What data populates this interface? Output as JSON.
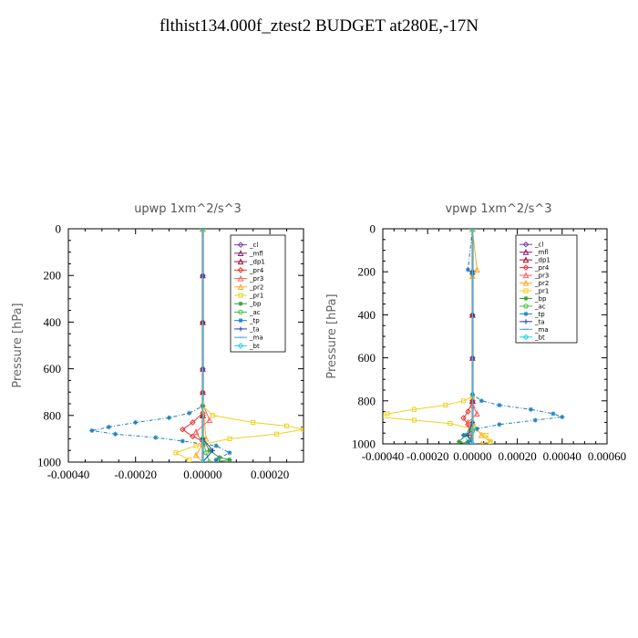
{
  "page_title": "flthist134.000f_ztest2  BUDGET at280E,-17N",
  "chart_data": [
    {
      "type": "line",
      "title": "upwp   1xm^2/s^3",
      "ylabel": "Pressure [hPa]",
      "xlabel": "",
      "xlim": [
        -0.0004,
        0.0003
      ],
      "ylim": [
        1000,
        0
      ],
      "x_ticks": [
        "-0.00040",
        "-0.00020",
        "0.00000",
        "0.00020"
      ],
      "x_tick_values": [
        -0.0004,
        -0.0002,
        0.0,
        0.0002
      ],
      "y_ticks": [
        "0",
        "200",
        "400",
        "600",
        "800",
        "1000"
      ],
      "y_tick_values": [
        0,
        200,
        400,
        600,
        800,
        1000
      ],
      "legend_position": "top-right",
      "series": [
        {
          "name": "_cl",
          "color": "#7b3fa0",
          "marker": "diamond",
          "points": [
            [
              0,
              0
            ],
            [
              0,
              200
            ],
            [
              0,
              400
            ],
            [
              0,
              600
            ],
            [
              0,
              800
            ],
            [
              0,
              1000
            ]
          ]
        },
        {
          "name": "_mfl",
          "color": "#8b1a6b",
          "marker": "triangle",
          "points": [
            [
              0,
              0
            ],
            [
              0,
              200
            ],
            [
              0,
              400
            ],
            [
              0,
              600
            ],
            [
              0,
              800
            ],
            [
              0,
              1000
            ]
          ]
        },
        {
          "name": "_dp1",
          "color": "#a01030",
          "marker": "triangle",
          "points": [
            [
              0,
              0
            ],
            [
              0,
              400
            ],
            [
              0,
              700
            ],
            [
              0,
              800
            ],
            [
              0,
              900
            ],
            [
              0,
              1000
            ]
          ]
        },
        {
          "name": "_pr4",
          "color": "#e83030",
          "marker": "diamond",
          "points": [
            [
              0,
              0
            ],
            [
              0,
              700
            ],
            [
              0,
              790
            ],
            [
              -3e-05,
              830
            ],
            [
              -6e-05,
              860
            ],
            [
              -3e-05,
              890
            ],
            [
              0,
              910
            ],
            [
              0,
              1000
            ]
          ]
        },
        {
          "name": "_pr3",
          "color": "#ff6060",
          "marker": "triangle",
          "points": [
            [
              0,
              0
            ],
            [
              0,
              750
            ],
            [
              2e-05,
              820
            ],
            [
              -2e-05,
              870
            ],
            [
              0,
              920
            ],
            [
              0,
              1000
            ]
          ]
        },
        {
          "name": "_pr2",
          "color": "#ffaa20",
          "marker": "triangle",
          "points": [
            [
              0,
              0
            ],
            [
              0,
              750
            ],
            [
              1e-05,
              900
            ],
            [
              -2e-05,
              970
            ],
            [
              0,
              1000
            ]
          ]
        },
        {
          "name": "_pr1",
          "color": "#f0d020",
          "marker": "square",
          "points": [
            [
              0,
              0
            ],
            [
              0,
              760
            ],
            [
              3e-05,
              800
            ],
            [
              0.00015,
              830
            ],
            [
              0.00025,
              845
            ],
            [
              0.0003,
              860
            ],
            [
              0.00022,
              880
            ],
            [
              8e-05,
              900
            ],
            [
              -2e-05,
              930
            ],
            [
              -8e-05,
              960
            ],
            [
              -4e-05,
              990
            ]
          ]
        },
        {
          "name": "_bp",
          "color": "#30a030",
          "marker": "star",
          "points": [
            [
              0,
              0
            ],
            [
              0,
              900
            ],
            [
              2e-05,
              950
            ],
            [
              5e-05,
              980
            ],
            [
              8e-05,
              990
            ],
            [
              4e-05,
              1000
            ]
          ]
        },
        {
          "name": "_ac",
          "color": "#40c040",
          "marker": "circle",
          "points": [
            [
              0,
              0
            ],
            [
              0,
              900
            ],
            [
              1e-05,
              960
            ],
            [
              2e-05,
              1000
            ]
          ]
        },
        {
          "name": "_tp",
          "color": "#2080c0",
          "marker": "star",
          "points": [
            [
              0,
              0
            ],
            [
              0,
              760
            ],
            [
              -4e-05,
              790
            ],
            [
              -0.0001,
              810
            ],
            [
              -0.0002,
              830
            ],
            [
              -0.00028,
              850
            ],
            [
              -0.00033,
              865
            ],
            [
              -0.00026,
              880
            ],
            [
              -0.00014,
              895
            ],
            [
              -6e-05,
              910
            ],
            [
              4e-05,
              930
            ],
            [
              8e-05,
              960
            ],
            [
              4e-05,
              990
            ]
          ]
        },
        {
          "name": "_ta",
          "color": "#2040c0",
          "marker": "plus",
          "points": [
            [
              0,
              0
            ],
            [
              0,
              200
            ],
            [
              0,
              900
            ],
            [
              3e-05,
              950
            ],
            [
              0,
              1000
            ]
          ]
        },
        {
          "name": "_ma",
          "color": "#40a0e0",
          "marker": "dash",
          "points": [
            [
              0,
              0
            ],
            [
              0,
              1000
            ]
          ]
        },
        {
          "name": "_bt",
          "color": "#20d0e0",
          "marker": "diamond",
          "points": [
            [
              0,
              0
            ],
            [
              0,
              1000
            ]
          ]
        }
      ]
    },
    {
      "type": "line",
      "title": "vpwp   1xm^2/s^3",
      "ylabel": "Pressure [hPa]",
      "xlabel": "",
      "xlim": [
        -0.0004,
        0.0006
      ],
      "ylim": [
        1000,
        0
      ],
      "x_ticks": [
        "-0.00040",
        "-0.00020",
        "0.00000",
        "0.00020",
        "0.00040",
        "0.00060"
      ],
      "x_tick_values": [
        -0.0004,
        -0.0002,
        0.0,
        0.0002,
        0.0004,
        0.0006
      ],
      "y_ticks": [
        "0",
        "200",
        "400",
        "600",
        "800",
        "1000"
      ],
      "y_tick_values": [
        0,
        200,
        400,
        600,
        800,
        1000
      ],
      "legend_position": "top-right",
      "series": [
        {
          "name": "_cl",
          "color": "#7b3fa0",
          "marker": "diamond",
          "points": [
            [
              0,
              0
            ],
            [
              0,
              200
            ],
            [
              0,
              400
            ],
            [
              0,
              600
            ],
            [
              0,
              800
            ],
            [
              0,
              1000
            ]
          ]
        },
        {
          "name": "_mfl",
          "color": "#8b1a6b",
          "marker": "triangle",
          "points": [
            [
              0,
              0
            ],
            [
              0,
              200
            ],
            [
              0,
              400
            ],
            [
              0,
              600
            ],
            [
              0,
              800
            ],
            [
              0,
              1000
            ]
          ]
        },
        {
          "name": "_dp1",
          "color": "#a01030",
          "marker": "triangle",
          "points": [
            [
              0,
              0
            ],
            [
              0,
              400
            ],
            [
              0,
              800
            ],
            [
              0,
              900
            ],
            [
              0,
              1000
            ]
          ]
        },
        {
          "name": "_pr4",
          "color": "#e83030",
          "marker": "diamond",
          "points": [
            [
              0,
              0
            ],
            [
              0,
              800
            ],
            [
              -2e-05,
              850
            ],
            [
              -4e-05,
              880
            ],
            [
              -2e-05,
              910
            ],
            [
              0,
              1000
            ]
          ]
        },
        {
          "name": "_pr3",
          "color": "#ff6060",
          "marker": "triangle",
          "points": [
            [
              0,
              0
            ],
            [
              0,
              820
            ],
            [
              2e-05,
              860
            ],
            [
              -2e-05,
              900
            ],
            [
              0,
              1000
            ]
          ]
        },
        {
          "name": "_pr2",
          "color": "#ffaa20",
          "marker": "triangle",
          "points": [
            [
              0,
              0
            ],
            [
              2e-05,
              190
            ],
            [
              0,
              220
            ],
            [
              0,
              900
            ],
            [
              4e-05,
              960
            ],
            [
              8e-05,
              990
            ],
            [
              4e-05,
              1000
            ]
          ]
        },
        {
          "name": "_pr1",
          "color": "#f0d020",
          "marker": "square",
          "points": [
            [
              0,
              0
            ],
            [
              0,
              780
            ],
            [
              -4e-05,
              800
            ],
            [
              -0.00012,
              820
            ],
            [
              -0.00026,
              840
            ],
            [
              -0.00038,
              860
            ],
            [
              -0.00042,
              875
            ],
            [
              -0.00026,
              890
            ],
            [
              -0.0001,
              905
            ],
            [
              0,
              930
            ],
            [
              6e-05,
              960
            ],
            [
              8e-05,
              990
            ]
          ]
        },
        {
          "name": "_bp",
          "color": "#30a030",
          "marker": "star",
          "points": [
            [
              0,
              0
            ],
            [
              0,
              900
            ],
            [
              -3e-05,
              960
            ],
            [
              -6e-05,
              990
            ],
            [
              -3e-05,
              1000
            ]
          ]
        },
        {
          "name": "_ac",
          "color": "#40c040",
          "marker": "circle",
          "points": [
            [
              0,
              0
            ],
            [
              0,
              940
            ],
            [
              -1e-05,
              980
            ],
            [
              -2e-05,
              1000
            ]
          ]
        },
        {
          "name": "_tp",
          "color": "#2080c0",
          "marker": "star",
          "points": [
            [
              0,
              0
            ],
            [
              -2e-05,
              190
            ],
            [
              0,
              210
            ],
            [
              0,
              770
            ],
            [
              4e-05,
              800
            ],
            [
              0.00012,
              820
            ],
            [
              0.00026,
              840
            ],
            [
              0.00036,
              860
            ],
            [
              0.0004,
              875
            ],
            [
              0.00028,
              890
            ],
            [
              0.00012,
              910
            ],
            [
              2e-05,
              930
            ],
            [
              -4e-05,
              960
            ],
            [
              -2e-05,
              990
            ]
          ]
        },
        {
          "name": "_ta",
          "color": "#2040c0",
          "marker": "plus",
          "points": [
            [
              0,
              0
            ],
            [
              0,
              900
            ],
            [
              -2e-05,
              960
            ],
            [
              0,
              1000
            ]
          ]
        },
        {
          "name": "_ma",
          "color": "#40a0e0",
          "marker": "dash",
          "points": [
            [
              0,
              0
            ],
            [
              0,
              1000
            ]
          ]
        },
        {
          "name": "_bt",
          "color": "#20d0e0",
          "marker": "diamond",
          "points": [
            [
              0,
              0
            ],
            [
              0,
              1000
            ]
          ]
        }
      ]
    }
  ]
}
